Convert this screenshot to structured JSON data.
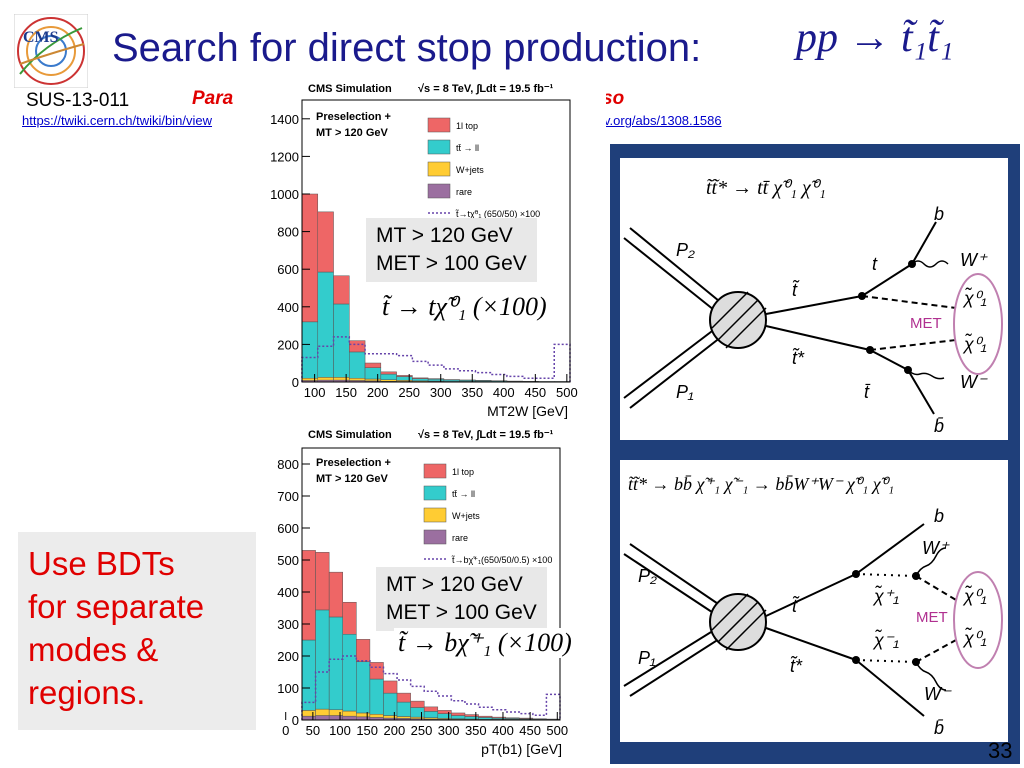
{
  "slide": {
    "title": "Search for direct stop production:",
    "title_formula": "pp → t̃₁t̃₁",
    "analysis_id": "SUS-13-011",
    "para_word": "Para",
    "so_word": "so",
    "twiki_link": "https://twiki.cern.ch/twiki/bin/view",
    "arxiv_link": "v.org/abs/1308.1586",
    "note": "Use BDTs\nfor separate\nmodes &\nregions.",
    "page_number": "33"
  },
  "chart_data": [
    {
      "type": "bar",
      "title": "CMS Simulation",
      "energy_label": "√s = 8 TeV, ∫Ldt = 19.5 fb⁻¹",
      "selection": [
        "Preselection +",
        "MT > 120 GeV"
      ],
      "xlabel": "MT2W [GeV]",
      "x_ticks": [
        100,
        150,
        200,
        250,
        300,
        350,
        400,
        450,
        500
      ],
      "ylim": [
        0,
        1500
      ],
      "y_ticks": [
        0,
        200,
        400,
        600,
        800,
        1000,
        1200,
        1400
      ],
      "bin_edges": [
        80,
        105,
        130,
        155,
        180,
        205,
        230,
        255,
        280,
        305,
        330,
        355,
        380,
        405,
        430,
        455,
        480,
        505
      ],
      "stacked": true,
      "series": [
        {
          "name": "rare",
          "color": "#9b6fa0",
          "values": [
            8,
            10,
            10,
            8,
            6,
            4,
            3,
            2,
            2,
            1,
            1,
            1,
            1,
            0,
            0,
            0,
            0
          ]
        },
        {
          "name": "W+jets",
          "color": "#ffcc33",
          "values": [
            12,
            15,
            15,
            12,
            10,
            8,
            6,
            4,
            3,
            2,
            2,
            2,
            1,
            1,
            1,
            1,
            1
          ]
        },
        {
          "name": "tt̄ → ll",
          "color": "#33cccc",
          "values": [
            300,
            560,
            390,
            140,
            60,
            30,
            20,
            12,
            10,
            8,
            6,
            5,
            4,
            3,
            3,
            2,
            2
          ]
        },
        {
          "name": "1l top",
          "color": "#ee6666",
          "values": [
            680,
            320,
            150,
            60,
            25,
            12,
            6,
            4,
            3,
            2,
            2,
            1,
            1,
            1,
            0,
            0,
            0
          ]
        }
      ],
      "signal": {
        "name": "t̃→tχ̃⁰₁ (650/50) ×100",
        "color": "#6644aa",
        "values": [
          130,
          190,
          240,
          200,
          150,
          150,
          140,
          110,
          90,
          70,
          60,
          50,
          40,
          30,
          20,
          20,
          200
        ]
      },
      "legend": [
        "1l top",
        "tt̄ → ll",
        "W+jets",
        "rare",
        "t̃→tχ̃⁰₁ (650/50) ×100"
      ],
      "cut_text": "MT > 120 GeV\nMET > 100 GeV",
      "decay_formula": "t̃ → tχ̃⁰₁ (×100)"
    },
    {
      "type": "bar",
      "title": "CMS Simulation",
      "energy_label": "√s = 8 TeV, ∫Ldt = 19.5 fb⁻¹",
      "selection": [
        "Preselection +",
        "MT > 120 GeV"
      ],
      "xlabel": "pT(b1) [GeV]",
      "x_ticks": [
        0,
        50,
        100,
        150,
        200,
        250,
        300,
        350,
        400,
        450,
        500
      ],
      "ylim": [
        0,
        850
      ],
      "y_ticks": [
        0,
        100,
        200,
        300,
        400,
        500,
        600,
        700,
        800
      ],
      "bin_edges": [
        30,
        55,
        80,
        105,
        130,
        155,
        180,
        205,
        230,
        255,
        280,
        305,
        330,
        355,
        380,
        405,
        430,
        455,
        480,
        505
      ],
      "stacked": true,
      "series": [
        {
          "name": "rare",
          "color": "#9b6fa0",
          "values": [
            12,
            14,
            14,
            12,
            10,
            8,
            6,
            5,
            4,
            3,
            2,
            2,
            1,
            1,
            1,
            1,
            1,
            0,
            0
          ]
        },
        {
          "name": "W+jets",
          "color": "#ffcc33",
          "values": [
            18,
            20,
            18,
            16,
            12,
            10,
            8,
            6,
            5,
            4,
            3,
            2,
            2,
            1,
            1,
            1,
            1,
            1,
            1
          ]
        },
        {
          "name": "tt̄ → ll",
          "color": "#33cccc",
          "values": [
            220,
            310,
            290,
            240,
            160,
            110,
            70,
            45,
            30,
            20,
            15,
            10,
            8,
            6,
            4,
            3,
            2,
            2,
            1
          ]
        },
        {
          "name": "1l top",
          "color": "#ee6666",
          "values": [
            280,
            180,
            140,
            100,
            70,
            52,
            38,
            28,
            20,
            14,
            10,
            8,
            6,
            4,
            3,
            2,
            2,
            1,
            1
          ]
        }
      ],
      "signal": {
        "name": "t̃→bχ̃⁺₁ (650/50/0.5) ×100",
        "color": "#6644aa",
        "values": [
          55,
          150,
          190,
          200,
          185,
          165,
          145,
          125,
          105,
          90,
          75,
          60,
          50,
          40,
          32,
          25,
          20,
          15,
          80
        ]
      },
      "legend": [
        "1l top",
        "tt̄ → ll",
        "W+jets",
        "rare",
        "t̃→bχ̃⁺₁(650/50/0.5) ×100"
      ],
      "cut_text": "MT > 120 GeV\nMET > 100 GeV",
      "decay_formula": "t̃ → bχ̃⁺₁ (×100)"
    }
  ],
  "diagrams": [
    {
      "process": "t̃t̃* → tt̄ χ̃⁰₁ χ̃⁰₁",
      "labels": {
        "p2": "P₂",
        "p1": "P₁",
        "stop": "t̃",
        "stopbar": "t̃*",
        "t": "t",
        "tbar": "t̄",
        "b": "b",
        "bbar": "b̄",
        "wp": "W⁺",
        "wm": "W⁻",
        "chi_a": "χ̃⁰₁",
        "chi_b": "χ̃⁰₁",
        "met": "MET"
      }
    },
    {
      "process": "t̃t̃* → bb̄ χ̃⁺₁ χ̃⁻₁ → bb̄W⁺W⁻ χ̃⁰₁ χ̃⁰₁",
      "labels": {
        "p2": "P₂",
        "p1": "P₁",
        "stop": "t̃",
        "stopbar": "t̃*",
        "chip": "χ̃⁺₁",
        "chim": "χ̃⁻₁",
        "b": "b",
        "bbar": "b̄",
        "wp": "W⁺",
        "wm": "W⁻",
        "chi_a": "χ̃⁰₁",
        "chi_b": "χ̃⁰₁",
        "met": "MET"
      }
    }
  ]
}
